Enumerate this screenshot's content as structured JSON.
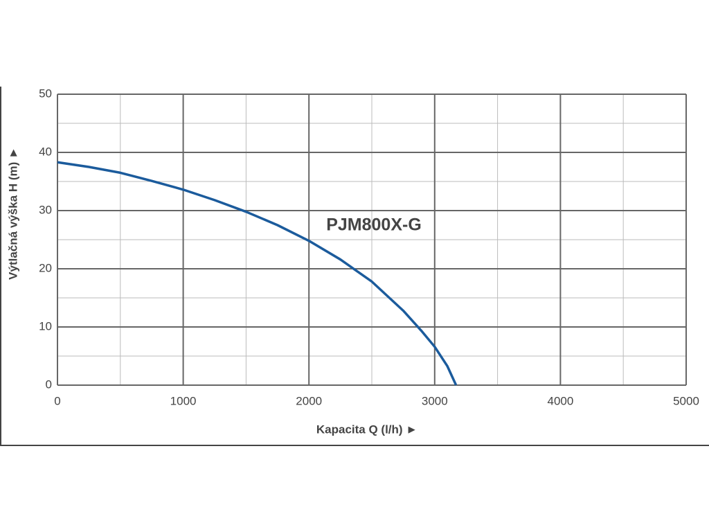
{
  "chart_data": {
    "type": "line",
    "annotation": "PJM800X-G",
    "xlabel": "Kapacita Q (l/h)  ►",
    "ylabel": "Výtlačná výška H (m)  ►",
    "x": [
      0,
      250,
      500,
      750,
      1000,
      1250,
      1500,
      1750,
      2000,
      2250,
      2500,
      2750,
      2900,
      3000,
      3100,
      3170
    ],
    "series": [
      {
        "name": "PJM800X-G",
        "color": "#1b5b9c",
        "values": [
          38.3,
          37.5,
          36.5,
          35.1,
          33.6,
          31.8,
          29.8,
          27.5,
          24.8,
          21.6,
          17.8,
          12.8,
          9.2,
          6.6,
          3.3,
          0
        ]
      }
    ],
    "xlim": [
      0,
      5000
    ],
    "xticks": [
      0,
      1000,
      2000,
      3000,
      4000,
      5000
    ],
    "minor_xticks": [
      500,
      1500,
      2500,
      3500,
      4500
    ],
    "ylim": [
      0,
      50
    ],
    "yticks": [
      0,
      10,
      20,
      30,
      40,
      50
    ],
    "minor_yticks": [
      5,
      15,
      25,
      35,
      45
    ],
    "grid": true
  }
}
